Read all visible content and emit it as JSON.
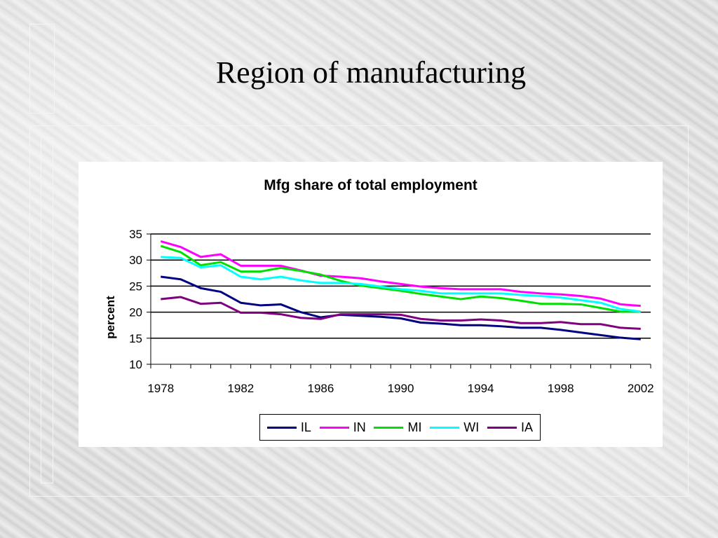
{
  "slide": {
    "title": "Region of manufacturing"
  },
  "chart_data": {
    "type": "line",
    "title": "Mfg share of total employment",
    "xlabel": "",
    "ylabel": "percent",
    "x": [
      1978,
      1979,
      1980,
      1981,
      1982,
      1983,
      1984,
      1985,
      1986,
      1987,
      1988,
      1989,
      1990,
      1991,
      1992,
      1993,
      1994,
      1995,
      1996,
      1997,
      1998,
      1999,
      2000,
      2001,
      2002
    ],
    "xticks": [
      "1978",
      "1982",
      "1986",
      "1990",
      "1994",
      "1998",
      "2002"
    ],
    "yticks": [
      "35",
      "30",
      "25",
      "20",
      "15",
      "10"
    ],
    "ylim": [
      10,
      35
    ],
    "xlim": [
      1977.5,
      2002.5
    ],
    "grid": "horizontal",
    "legend_position": "bottom",
    "series": [
      {
        "name": "IL",
        "color": "#000080",
        "values": [
          26.8,
          26.3,
          24.6,
          23.9,
          21.8,
          21.3,
          21.5,
          20.0,
          19.0,
          19.5,
          19.3,
          19.1,
          18.8,
          18.0,
          17.8,
          17.5,
          17.5,
          17.3,
          17.0,
          17.0,
          16.6,
          16.1,
          15.6,
          15.1,
          14.8
        ]
      },
      {
        "name": "IN",
        "color": "#FF00FF",
        "values": [
          33.6,
          32.5,
          30.6,
          31.1,
          28.9,
          28.9,
          28.9,
          28.0,
          27.0,
          26.8,
          26.5,
          25.9,
          25.4,
          24.9,
          24.6,
          24.4,
          24.4,
          24.4,
          23.9,
          23.6,
          23.4,
          23.1,
          22.6,
          21.5,
          21.2
        ]
      },
      {
        "name": "MI",
        "color": "#00E000",
        "values": [
          32.7,
          31.5,
          29.0,
          29.6,
          27.8,
          27.8,
          28.5,
          27.9,
          27.2,
          26.0,
          25.1,
          24.6,
          24.1,
          23.5,
          23.0,
          22.5,
          23.0,
          22.7,
          22.2,
          21.6,
          21.6,
          21.5,
          20.8,
          20.1,
          20.1
        ]
      },
      {
        "name": "WI",
        "color": "#00FFFF",
        "values": [
          30.6,
          30.4,
          28.6,
          29.0,
          26.8,
          26.3,
          26.8,
          26.1,
          25.6,
          25.6,
          25.4,
          24.9,
          24.4,
          24.1,
          23.6,
          23.6,
          23.6,
          23.6,
          23.3,
          23.1,
          22.8,
          22.3,
          21.8,
          20.6,
          20.1
        ]
      },
      {
        "name": "IA",
        "color": "#800080",
        "values": [
          22.5,
          22.9,
          21.6,
          21.8,
          19.9,
          19.9,
          19.6,
          18.9,
          18.7,
          19.6,
          19.6,
          19.6,
          19.5,
          18.7,
          18.4,
          18.4,
          18.6,
          18.4,
          17.9,
          17.9,
          18.1,
          17.7,
          17.7,
          17.0,
          16.8
        ]
      }
    ]
  }
}
